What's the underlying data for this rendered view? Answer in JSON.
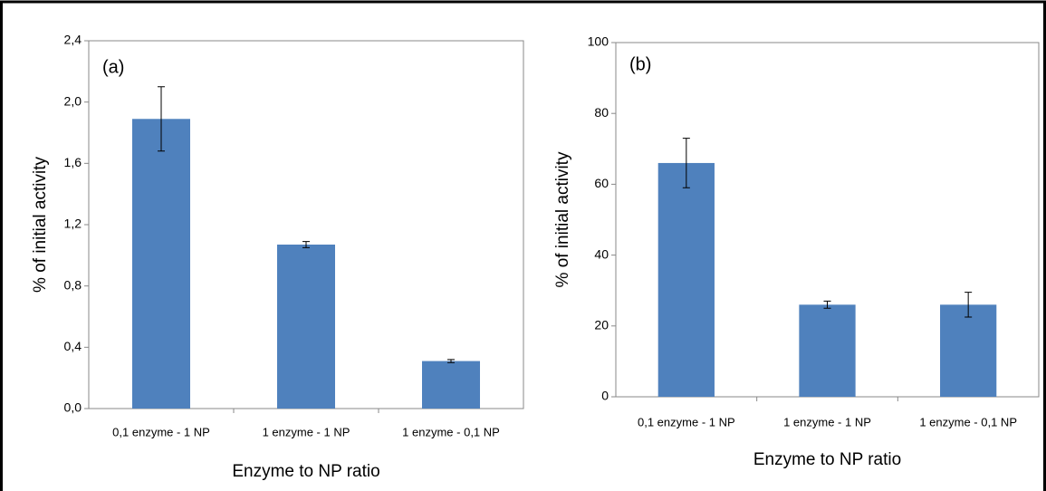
{
  "chart_data": [
    {
      "type": "bar",
      "annotation": "(a)",
      "x_label": "Enzyme to NP ratio",
      "y_label": "% of initial activity",
      "categories": [
        "0,1 enzyme - 1 NP",
        "1 enzyme - 1 NP",
        "1 enzyme - 0,1 NP"
      ],
      "values": [
        1.89,
        1.07,
        0.31
      ],
      "errors": [
        0.21,
        0.02,
        0.01
      ],
      "color": "#4f81bd",
      "ylim": [
        0,
        2.4
      ],
      "yticks": [
        {
          "value": 0,
          "label": "0,0"
        },
        {
          "value": 0.4,
          "label": "0,4"
        },
        {
          "value": 0.8,
          "label": "0,8"
        },
        {
          "value": 1.2,
          "label": "1,2"
        },
        {
          "value": 1.6,
          "label": "1,6"
        },
        {
          "value": 2.0,
          "label": "2,0"
        },
        {
          "value": 2.4,
          "label": "2,4"
        }
      ]
    },
    {
      "type": "bar",
      "annotation": "(b)",
      "x_label": "Enzyme to NP ratio",
      "y_label": "% of initial activity",
      "categories": [
        "0,1 enzyme - 1 NP",
        "1 enzyme - 1 NP",
        "1 enzyme - 0,1 NP"
      ],
      "values": [
        66,
        26,
        26
      ],
      "errors": [
        7,
        1,
        3.5
      ],
      "color": "#4f81bd",
      "ylim": [
        0,
        100
      ],
      "yticks": [
        0,
        20,
        40,
        60,
        80,
        100
      ]
    }
  ]
}
